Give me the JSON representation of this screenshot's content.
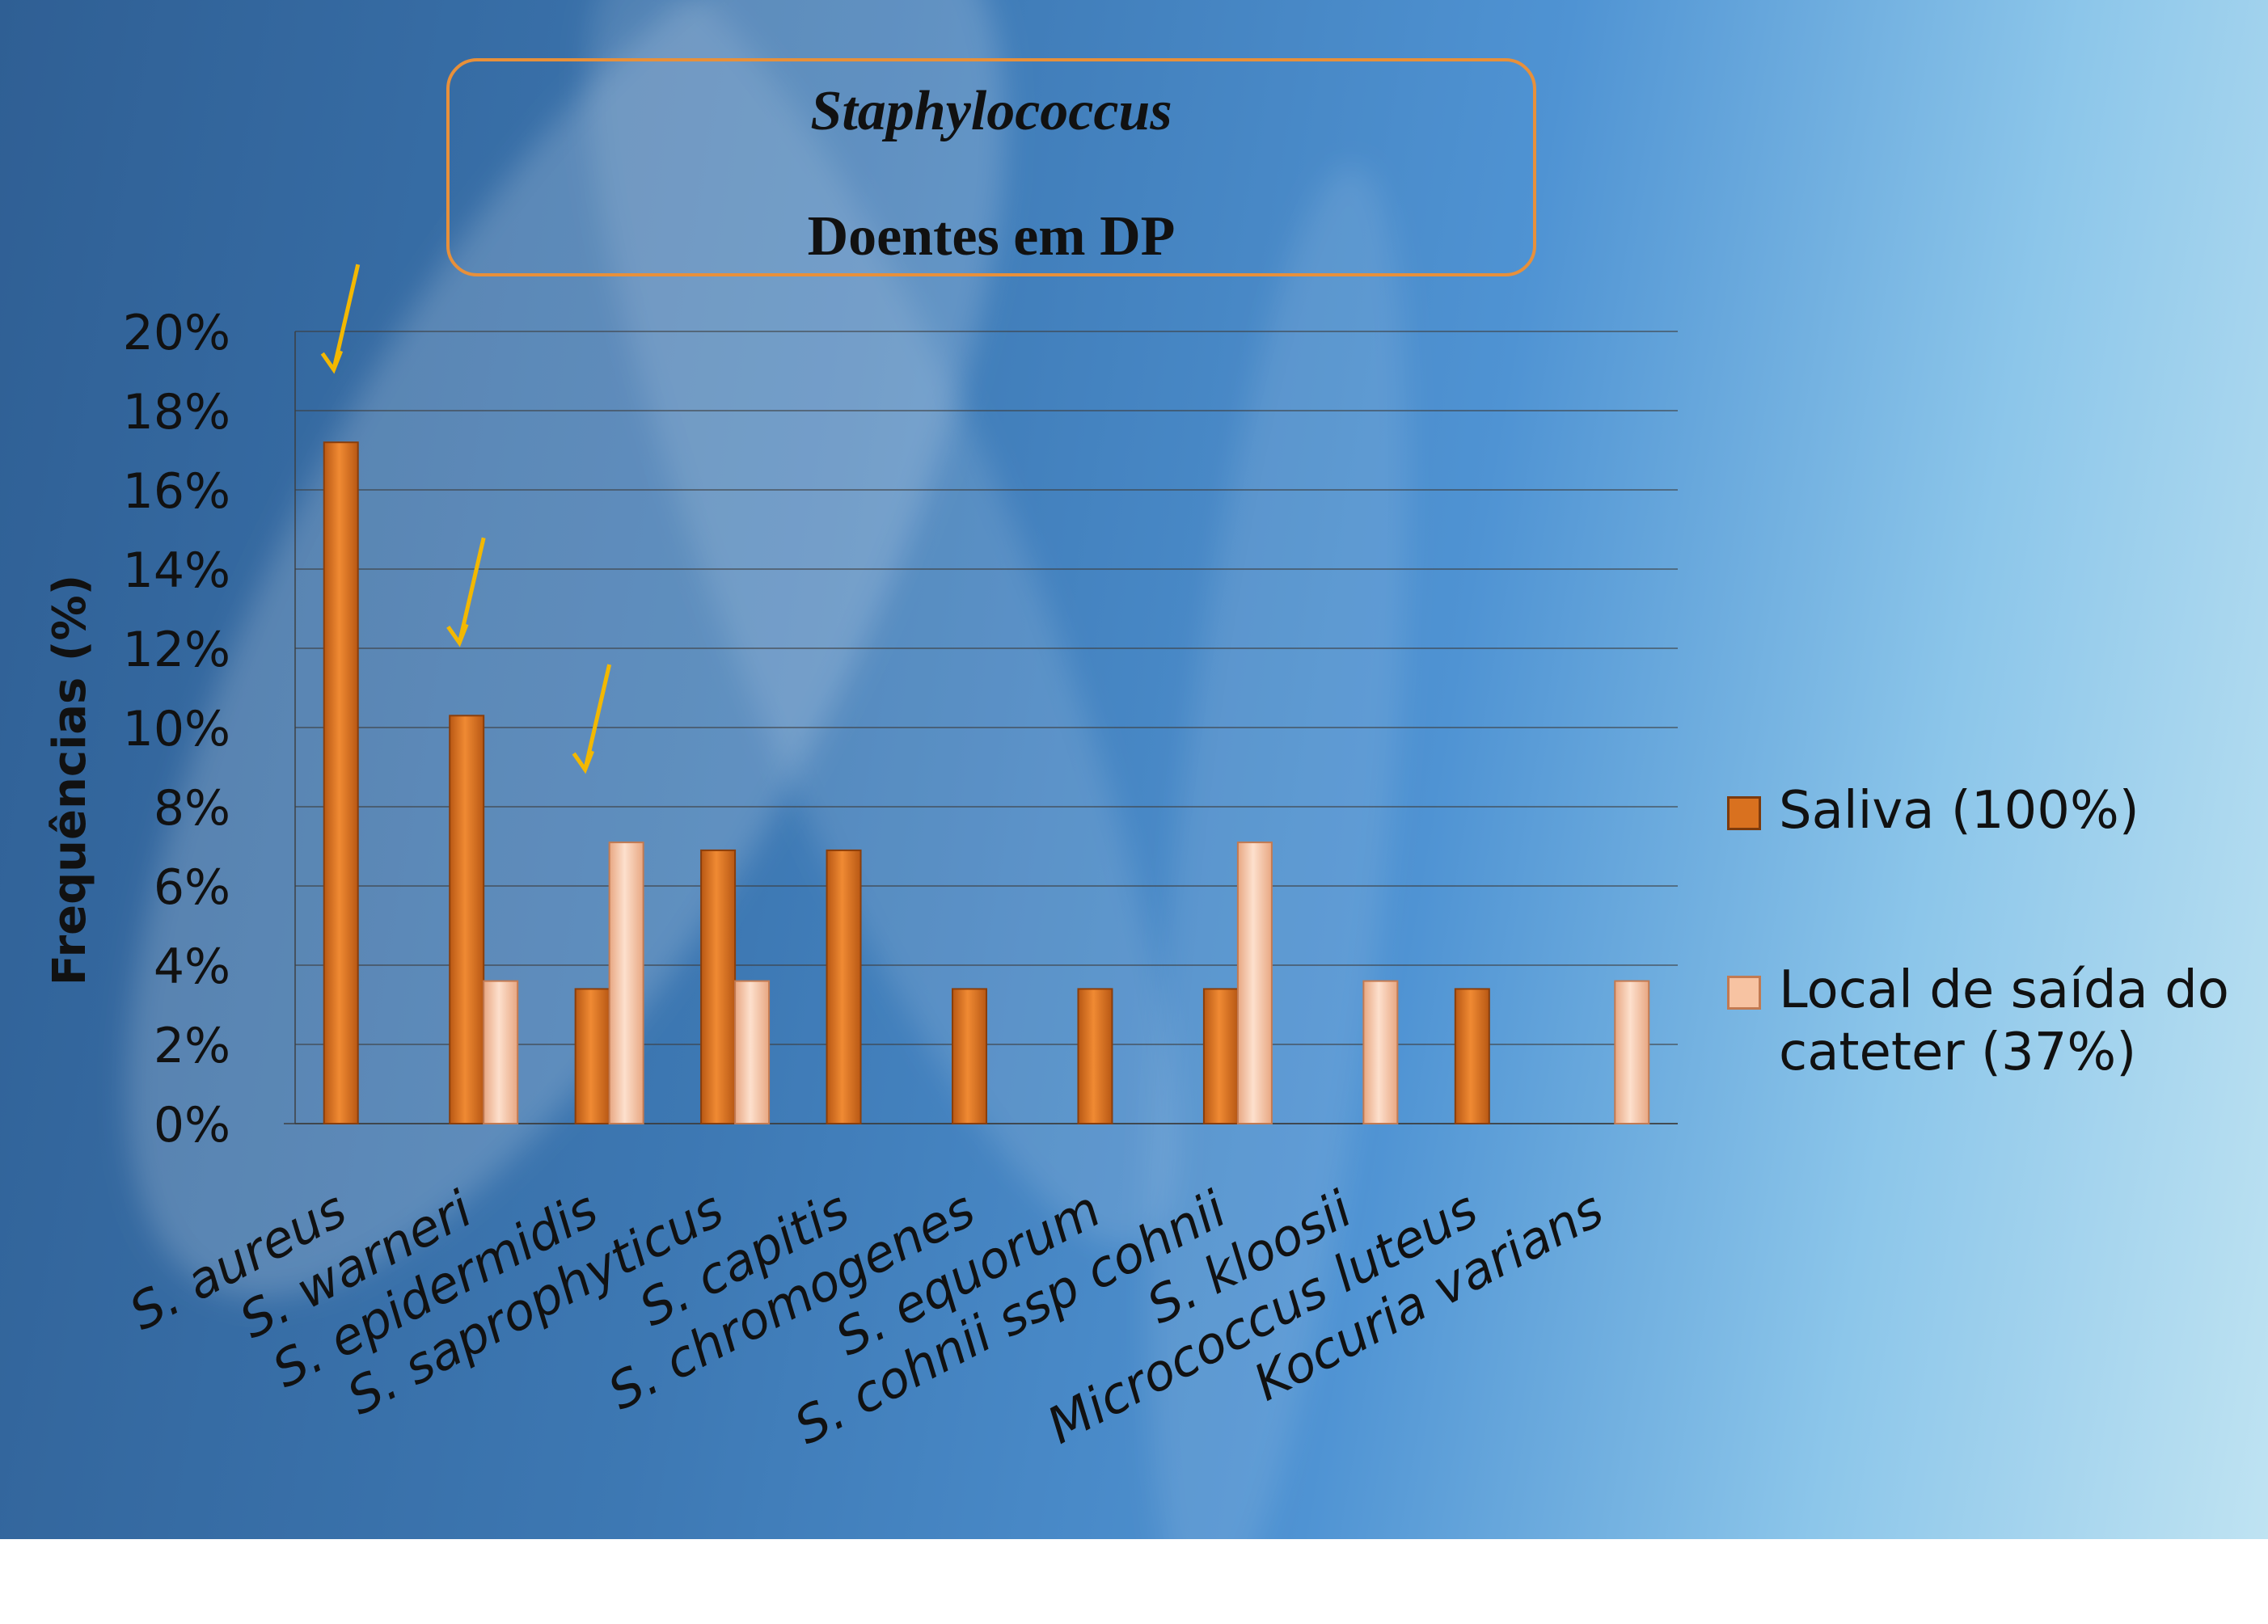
{
  "title": {
    "genus": "Staphylococcus",
    "group": "Doentes em DP"
  },
  "colors": {
    "saliva": "#d9711f",
    "catheter": "#f7c3a2",
    "frame": "#e8903a",
    "arrow": "#f3b800"
  },
  "chart_data": {
    "type": "bar",
    "ylabel": "Frequências (%)",
    "xlabel": "",
    "ylim": [
      0,
      20
    ],
    "yticks": [
      "0%",
      "2%",
      "4%",
      "6%",
      "8%",
      "10%",
      "12%",
      "14%",
      "16%",
      "18%",
      "20%"
    ],
    "grid": true,
    "legend_position": "right",
    "categories": [
      "S. aureus",
      "S. warneri",
      "S. epidermidis",
      "S. saprophyticus",
      "S. capitis",
      "S. chromogenes",
      "S. equorum",
      "S. cohnii ssp cohnii",
      "S. kloosii",
      "Micrococcus luteus",
      "Kocuria varians"
    ],
    "series": [
      {
        "name": "Saliva (100%)",
        "values": [
          17.2,
          10.3,
          3.4,
          6.9,
          6.9,
          3.4,
          3.4,
          3.4,
          0,
          3.4,
          0
        ]
      },
      {
        "name": "Local de saída do cateter (37%)",
        "values": [
          0,
          3.6,
          7.1,
          3.6,
          0,
          0,
          0,
          7.1,
          3.6,
          0,
          3.6
        ]
      }
    ],
    "legend": [
      {
        "line1": "Saliva (100%)",
        "line2": ""
      },
      {
        "line1": "Local de saída do",
        "line2": "cateter (37%)"
      }
    ],
    "annotations": [
      "arrow over S. aureus",
      "arrow over S. warneri",
      "arrow over S. epidermidis"
    ]
  }
}
